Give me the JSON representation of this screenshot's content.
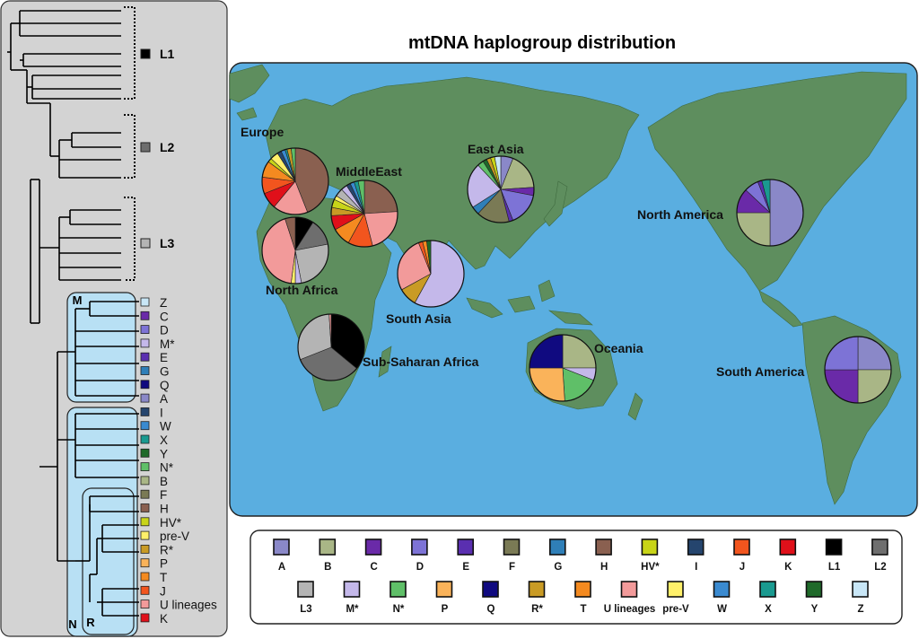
{
  "title": "mtDNA haplogroup distribution",
  "colors": {
    "A": "#8a88c8",
    "B": "#a9b686",
    "C": "#6a2aa8",
    "D": "#7d73d6",
    "E": "#5a2fb0",
    "F": "#7a7a55",
    "G": "#2f7fb8",
    "H": "#8a6050",
    "HV*": "#c8d418",
    "I": "#25456e",
    "J": "#f2551e",
    "K": "#e0101a",
    "L1": "#000000",
    "L2": "#6e6e6e",
    "L3": "#b4b4b4",
    "M*": "#c4b8ea",
    "N*": "#5fbf68",
    "P": "#fab35a",
    "Q": "#100a80",
    "R*": "#c99b25",
    "T": "#f48a20",
    "U lineages": "#f29a9a",
    "pre-V": "#fff06a",
    "W": "#3a8ad0",
    "X": "#1a9a90",
    "Y": "#1f6a2a",
    "Z": "#c8e6f6",
    "ocean": "#5aaee0",
    "land": "#5e8e5e",
    "panel": "#d3d3d3",
    "clade_box": "#b8e0f4"
  },
  "tree": {
    "groups": [
      {
        "label": "L1",
        "swatch": "#000000"
      },
      {
        "label": "L2",
        "swatch": "#6e6e6e"
      },
      {
        "label": "L3",
        "swatch": "#b4b4b4"
      }
    ],
    "clade_labels": [
      "M",
      "N",
      "R"
    ],
    "leaves": [
      {
        "label": "Z",
        "key": "Z"
      },
      {
        "label": "C",
        "key": "C"
      },
      {
        "label": "D",
        "key": "D"
      },
      {
        "label": "M*",
        "key": "M*"
      },
      {
        "label": "E",
        "key": "E"
      },
      {
        "label": "G",
        "key": "G"
      },
      {
        "label": "Q",
        "key": "Q"
      },
      {
        "label": "A",
        "key": "A"
      },
      {
        "label": "I",
        "key": "I"
      },
      {
        "label": "W",
        "key": "W"
      },
      {
        "label": "X",
        "key": "X"
      },
      {
        "label": "Y",
        "key": "Y"
      },
      {
        "label": "N*",
        "key": "N*"
      },
      {
        "label": "B",
        "key": "B"
      },
      {
        "label": "F",
        "key": "F"
      },
      {
        "label": "H",
        "key": "H"
      },
      {
        "label": "HV*",
        "key": "HV*"
      },
      {
        "label": "pre-V",
        "key": "pre-V"
      },
      {
        "label": "R*",
        "key": "R*"
      },
      {
        "label": "P",
        "key": "P"
      },
      {
        "label": "T",
        "key": "T"
      },
      {
        "label": "J",
        "key": "J"
      },
      {
        "label": "U lineages",
        "key": "U lineages"
      },
      {
        "label": "K",
        "key": "K"
      }
    ]
  },
  "legend": {
    "row1": [
      "A",
      "B",
      "C",
      "D",
      "E",
      "F",
      "G",
      "H",
      "HV*",
      "I",
      "J",
      "K",
      "L1",
      "L2"
    ],
    "row2": [
      "L3",
      "M*",
      "N*",
      "P",
      "Q",
      "R*",
      "T",
      "U lineages",
      "pre-V",
      "W",
      "X",
      "Y",
      "Z"
    ]
  },
  "chart_data": {
    "type": "pie",
    "title": "mtDNA haplogroup distribution",
    "unit": "percent of regional sample (approximate)",
    "regions": [
      {
        "name": "Europe",
        "slices": [
          {
            "haplogroup": "H",
            "value": 44
          },
          {
            "haplogroup": "U lineages",
            "value": 17
          },
          {
            "haplogroup": "K",
            "value": 8
          },
          {
            "haplogroup": "J",
            "value": 8
          },
          {
            "haplogroup": "T",
            "value": 8
          },
          {
            "haplogroup": "HV*",
            "value": 2
          },
          {
            "haplogroup": "pre-V",
            "value": 4
          },
          {
            "haplogroup": "I",
            "value": 2
          },
          {
            "haplogroup": "W",
            "value": 2
          },
          {
            "haplogroup": "X",
            "value": 1
          },
          {
            "haplogroup": "R*",
            "value": 2
          },
          {
            "haplogroup": "N*",
            "value": 2
          }
        ]
      },
      {
        "name": "MiddleEast",
        "slices": [
          {
            "haplogroup": "H",
            "value": 24
          },
          {
            "haplogroup": "U lineages",
            "value": 22
          },
          {
            "haplogroup": "J",
            "value": 12
          },
          {
            "haplogroup": "T",
            "value": 9
          },
          {
            "haplogroup": "K",
            "value": 7
          },
          {
            "haplogroup": "R*",
            "value": 4
          },
          {
            "haplogroup": "HV*",
            "value": 4
          },
          {
            "haplogroup": "pre-V",
            "value": 2
          },
          {
            "haplogroup": "L3",
            "value": 4
          },
          {
            "haplogroup": "M*",
            "value": 3
          },
          {
            "haplogroup": "I",
            "value": 2
          },
          {
            "haplogroup": "W",
            "value": 2
          },
          {
            "haplogroup": "X",
            "value": 2
          },
          {
            "haplogroup": "N*",
            "value": 3
          }
        ]
      },
      {
        "name": "North Africa",
        "slices": [
          {
            "haplogroup": "L1",
            "value": 9
          },
          {
            "haplogroup": "L2",
            "value": 13
          },
          {
            "haplogroup": "L3",
            "value": 25
          },
          {
            "haplogroup": "M*",
            "value": 3
          },
          {
            "haplogroup": "pre-V",
            "value": 2
          },
          {
            "haplogroup": "U lineages",
            "value": 43
          },
          {
            "haplogroup": "H",
            "value": 5
          }
        ]
      },
      {
        "name": "Sub-Saharan Africa",
        "slices": [
          {
            "haplogroup": "L1",
            "value": 36
          },
          {
            "haplogroup": "L2",
            "value": 33
          },
          {
            "haplogroup": "L3",
            "value": 30
          },
          {
            "haplogroup": "U lineages",
            "value": 1
          }
        ]
      },
      {
        "name": "South Asia",
        "slices": [
          {
            "haplogroup": "M*",
            "value": 58
          },
          {
            "haplogroup": "R*",
            "value": 9
          },
          {
            "haplogroup": "U lineages",
            "value": 27
          },
          {
            "haplogroup": "J",
            "value": 2
          },
          {
            "haplogroup": "T",
            "value": 2
          },
          {
            "haplogroup": "Y",
            "value": 2
          }
        ]
      },
      {
        "name": "East Asia",
        "slices": [
          {
            "haplogroup": "A",
            "value": 6
          },
          {
            "haplogroup": "B",
            "value": 18
          },
          {
            "haplogroup": "C",
            "value": 4
          },
          {
            "haplogroup": "D",
            "value": 16
          },
          {
            "haplogroup": "E",
            "value": 2
          },
          {
            "haplogroup": "F",
            "value": 16
          },
          {
            "haplogroup": "G",
            "value": 4
          },
          {
            "haplogroup": "M*",
            "value": 22
          },
          {
            "haplogroup": "N*",
            "value": 3
          },
          {
            "haplogroup": "Y",
            "value": 2
          },
          {
            "haplogroup": "R*",
            "value": 2
          },
          {
            "haplogroup": "HV*",
            "value": 2
          },
          {
            "haplogroup": "Z",
            "value": 3
          }
        ]
      },
      {
        "name": "North America",
        "slices": [
          {
            "haplogroup": "A",
            "value": 50
          },
          {
            "haplogroup": "B",
            "value": 25
          },
          {
            "haplogroup": "C",
            "value": 12
          },
          {
            "haplogroup": "D",
            "value": 7
          },
          {
            "haplogroup": "E",
            "value": 2
          },
          {
            "haplogroup": "X",
            "value": 4
          }
        ]
      },
      {
        "name": "Oceania",
        "slices": [
          {
            "haplogroup": "B",
            "value": 25
          },
          {
            "haplogroup": "M*",
            "value": 6
          },
          {
            "haplogroup": "N*",
            "value": 18
          },
          {
            "haplogroup": "P",
            "value": 26
          },
          {
            "haplogroup": "Q",
            "value": 25
          }
        ]
      },
      {
        "name": "South America",
        "slices": [
          {
            "haplogroup": "A",
            "value": 25
          },
          {
            "haplogroup": "B",
            "value": 25
          },
          {
            "haplogroup": "C",
            "value": 25
          },
          {
            "haplogroup": "D",
            "value": 25
          }
        ]
      }
    ]
  }
}
